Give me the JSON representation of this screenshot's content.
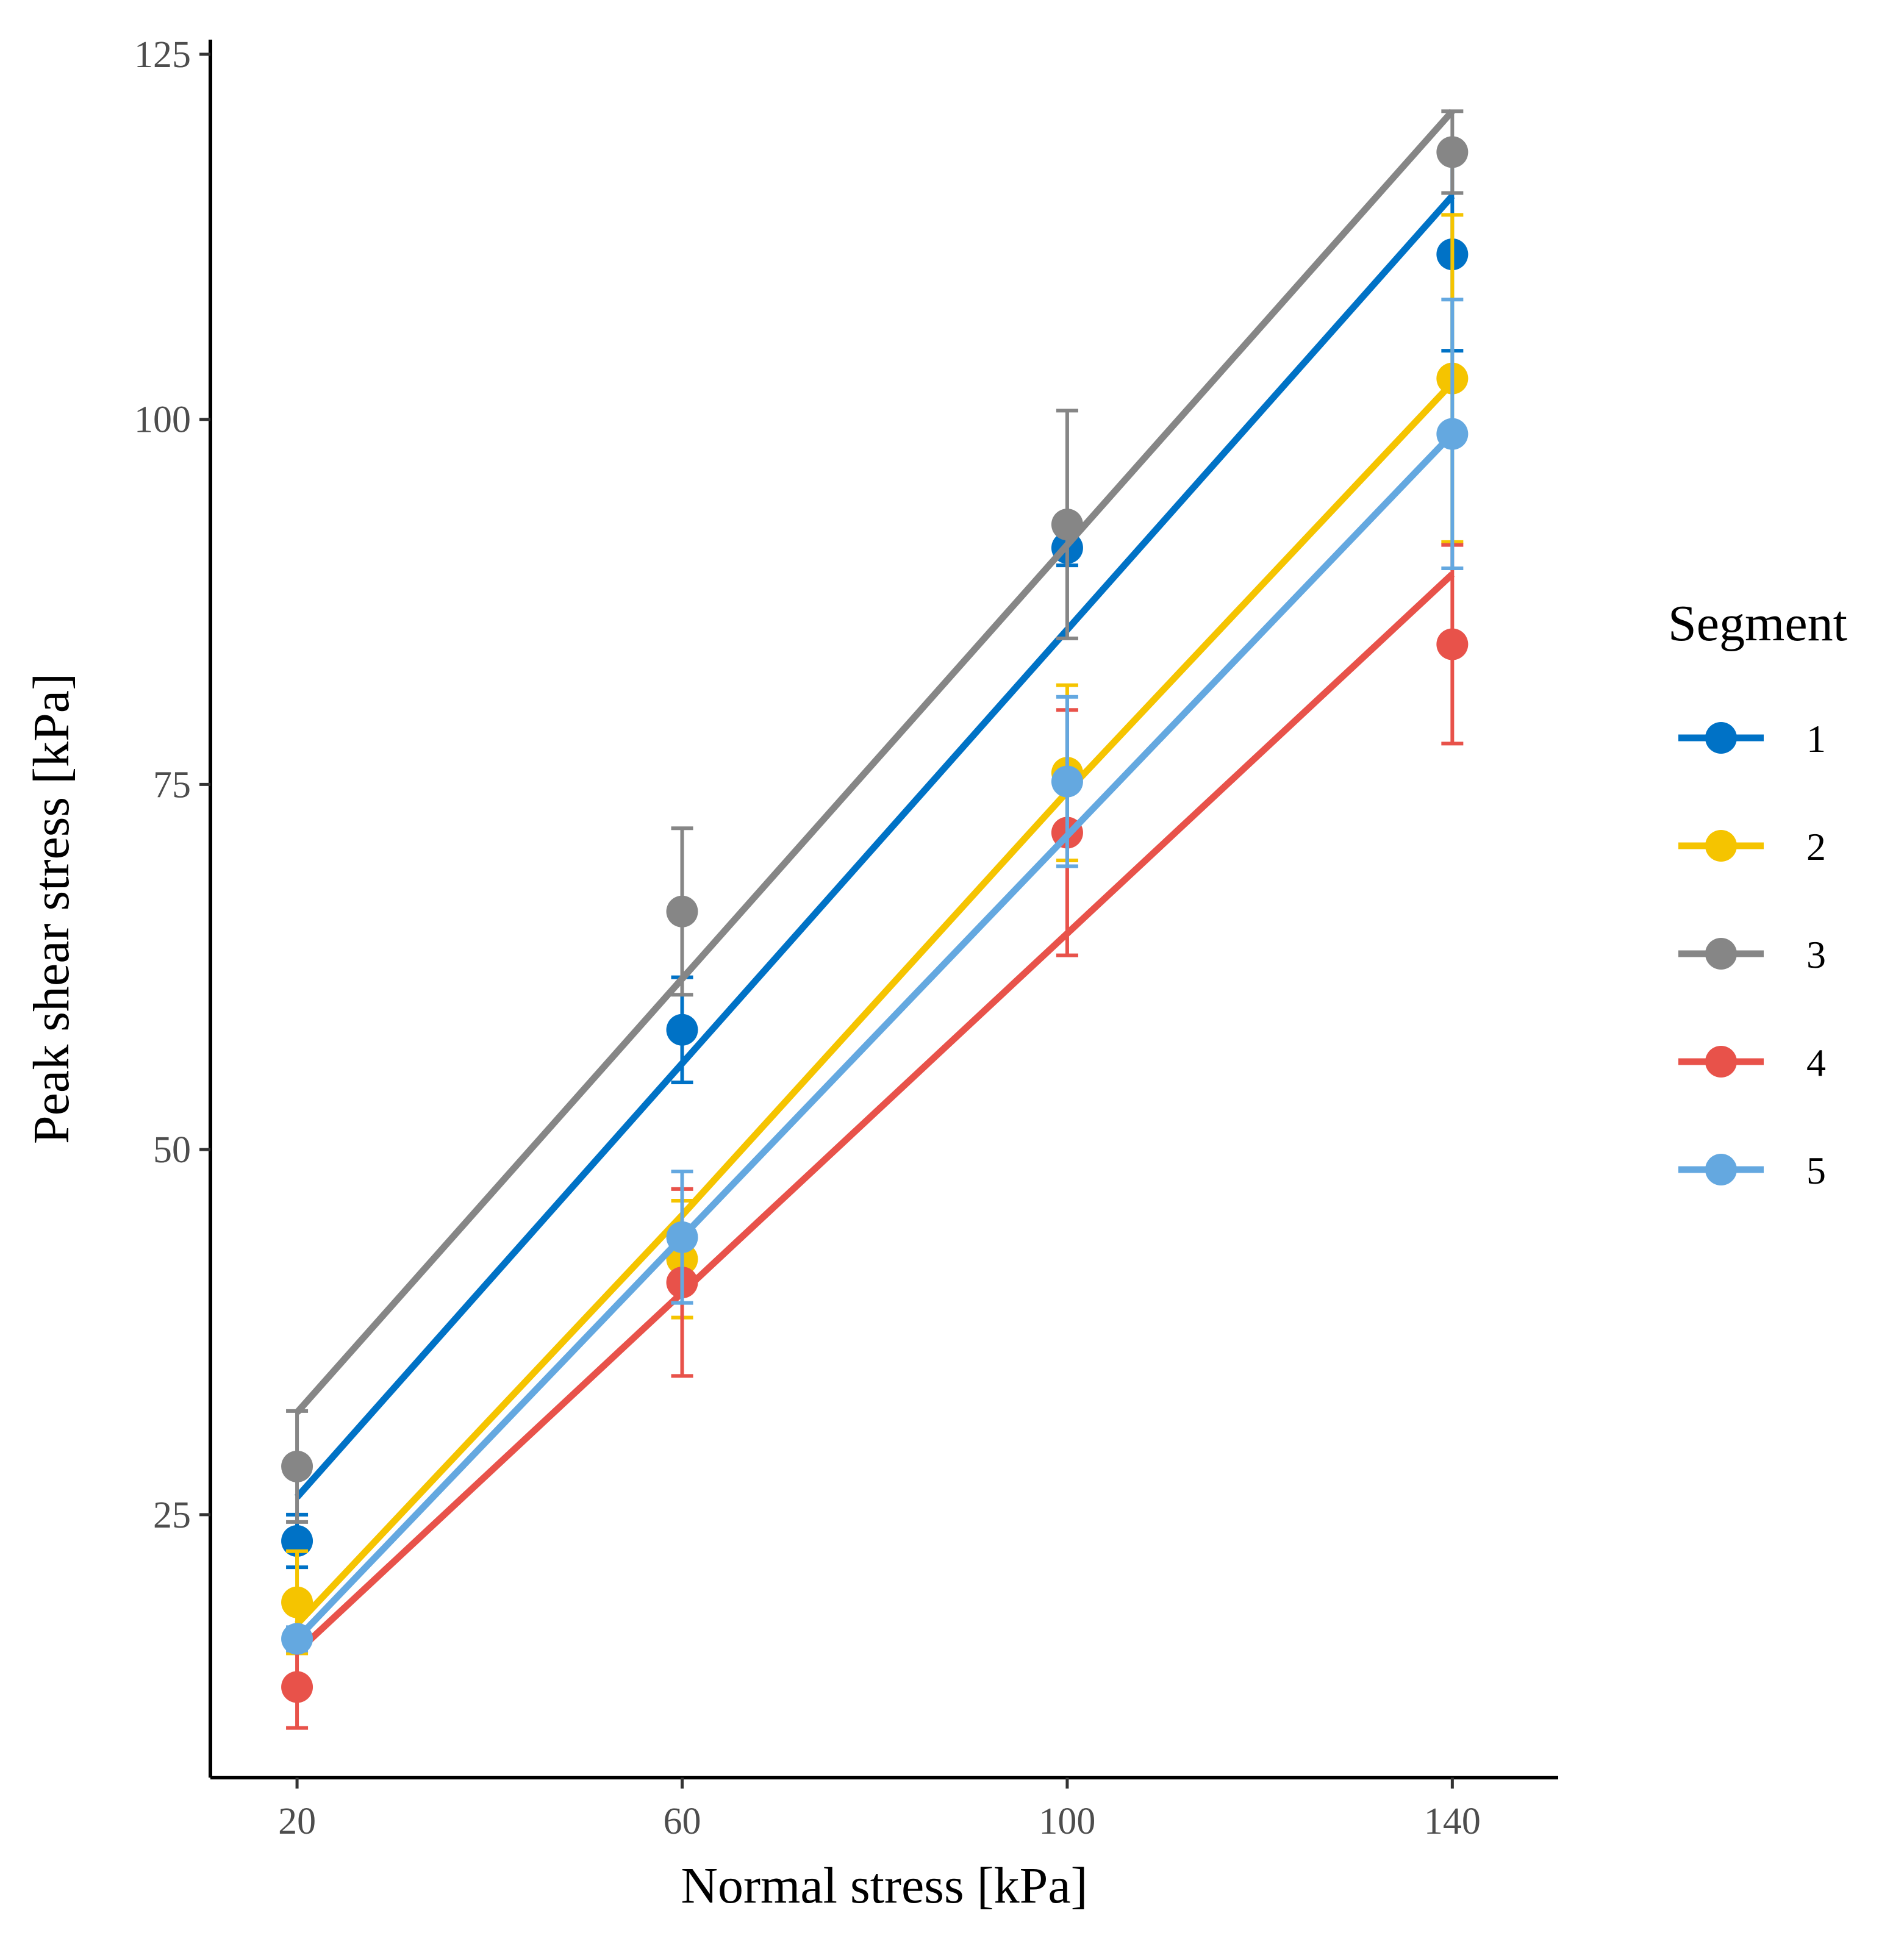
{
  "chart_data": {
    "type": "scatter",
    "title": "",
    "xlabel": "Normal stress [kPa]",
    "ylabel": "Peak shear stress [kPa]",
    "xlim": [
      11,
      151
    ],
    "ylim": [
      7,
      126
    ],
    "x_ticks": [
      20,
      60,
      100,
      140
    ],
    "y_ticks": [
      25,
      50,
      75,
      100,
      125
    ],
    "grid": false,
    "legend": {
      "title": "Segment",
      "position": "right"
    },
    "x": [
      20,
      60,
      100,
      140
    ],
    "series": [
      {
        "name": "1",
        "color": "#0072C6",
        "values": [
          23.2,
          58.2,
          91.2,
          111.3
        ],
        "error": [
          1.8,
          3.6,
          1.2,
          6.6
        ],
        "fit": [
          26.2,
          55.9,
          85.6,
          115.3
        ]
      },
      {
        "name": "2",
        "color": "#F5C400",
        "values": [
          19.0,
          42.5,
          75.8,
          102.8
        ],
        "error": [
          3.5,
          4.0,
          6.0,
          11.2
        ],
        "fit": [
          17.5,
          45.5,
          74.5,
          102.5
        ]
      },
      {
        "name": "3",
        "color": "#868686",
        "values": [
          28.3,
          66.3,
          92.8,
          118.3
        ],
        "error": [
          3.8,
          5.7,
          7.8,
          2.8
        ],
        "fit": [
          32.0,
          61.7,
          91.4,
          121.1
        ]
      },
      {
        "name": "4",
        "color": "#E8524A",
        "values": [
          13.2,
          40.9,
          71.7,
          84.6
        ],
        "error": [
          2.8,
          6.4,
          8.4,
          6.8
        ],
        "fit": [
          15.6,
          40.2,
          64.8,
          89.4
        ]
      },
      {
        "name": "5",
        "color": "#64A8E0",
        "values": [
          16.5,
          44.0,
          75.2,
          99.0
        ],
        "error": [
          0.8,
          4.5,
          5.8,
          9.2
        ],
        "fit": [
          16.5,
          44.0,
          71.5,
          99.0
        ]
      }
    ]
  }
}
